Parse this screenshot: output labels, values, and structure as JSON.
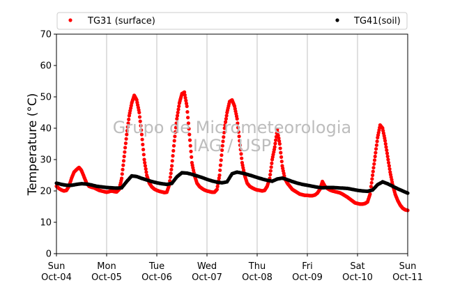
{
  "chart_data": {
    "type": "scatter",
    "ylabel": "Temperature (°C)",
    "xlabel": "",
    "ylim": [
      0,
      70
    ],
    "xlim": [
      0,
      7
    ],
    "yticks": [
      0,
      10,
      20,
      30,
      40,
      50,
      60,
      70
    ],
    "xticks": [
      {
        "x": 0,
        "day": "Sun",
        "date": "Oct-04"
      },
      {
        "x": 1,
        "day": "Mon",
        "date": "Oct-05"
      },
      {
        "x": 2,
        "day": "Tue",
        "date": "Oct-06"
      },
      {
        "x": 3,
        "day": "Wed",
        "date": "Oct-07"
      },
      {
        "x": 4,
        "day": "Thu",
        "date": "Oct-08"
      },
      {
        "x": 5,
        "day": "Fri",
        "date": "Oct-09"
      },
      {
        "x": 6,
        "day": "Sat",
        "date": "Oct-10"
      },
      {
        "x": 7,
        "day": "Sun",
        "date": "Oct-11"
      }
    ],
    "grid": "vertical",
    "legend_position": "top",
    "watermark": [
      "Grupo de Micrometeorologia",
      "IAG / USP"
    ],
    "series": [
      {
        "name": "TG31 (surface)",
        "color": "#ff0000",
        "points": [
          [
            0.0,
            21.5
          ],
          [
            0.05,
            20.8
          ],
          [
            0.1,
            20.3
          ],
          [
            0.15,
            20.0
          ],
          [
            0.2,
            20.2
          ],
          [
            0.25,
            21.5
          ],
          [
            0.3,
            24.0
          ],
          [
            0.35,
            26.0
          ],
          [
            0.4,
            26.8
          ],
          [
            0.45,
            27.5
          ],
          [
            0.5,
            26.5
          ],
          [
            0.55,
            24.5
          ],
          [
            0.6,
            22.5
          ],
          [
            0.65,
            21.5
          ],
          [
            0.7,
            21.2
          ],
          [
            0.75,
            21.0
          ],
          [
            0.8,
            20.6
          ],
          [
            0.85,
            20.2
          ],
          [
            0.9,
            20.0
          ],
          [
            0.95,
            19.8
          ],
          [
            1.0,
            19.6
          ],
          [
            1.05,
            19.8
          ],
          [
            1.1,
            20.0
          ],
          [
            1.15,
            19.8
          ],
          [
            1.2,
            19.7
          ],
          [
            1.25,
            20.5
          ],
          [
            1.3,
            24.0
          ],
          [
            1.35,
            31.0
          ],
          [
            1.4,
            38.0
          ],
          [
            1.45,
            44.0
          ],
          [
            1.5,
            48.0
          ],
          [
            1.55,
            50.5
          ],
          [
            1.6,
            49.0
          ],
          [
            1.65,
            45.0
          ],
          [
            1.7,
            38.0
          ],
          [
            1.75,
            30.0
          ],
          [
            1.8,
            25.0
          ],
          [
            1.85,
            22.5
          ],
          [
            1.9,
            21.3
          ],
          [
            1.95,
            20.6
          ],
          [
            2.0,
            20.2
          ],
          [
            2.05,
            19.9
          ],
          [
            2.1,
            19.7
          ],
          [
            2.15,
            19.5
          ],
          [
            2.2,
            19.6
          ],
          [
            2.25,
            22.0
          ],
          [
            2.3,
            28.0
          ],
          [
            2.35,
            36.0
          ],
          [
            2.4,
            43.0
          ],
          [
            2.45,
            48.0
          ],
          [
            2.5,
            51.0
          ],
          [
            2.55,
            51.5
          ],
          [
            2.6,
            47.0
          ],
          [
            2.65,
            38.0
          ],
          [
            2.7,
            29.0
          ],
          [
            2.75,
            25.0
          ],
          [
            2.8,
            22.5
          ],
          [
            2.85,
            21.4
          ],
          [
            2.9,
            20.8
          ],
          [
            2.95,
            20.3
          ],
          [
            3.0,
            20.0
          ],
          [
            3.05,
            19.8
          ],
          [
            3.1,
            19.6
          ],
          [
            3.15,
            19.6
          ],
          [
            3.2,
            20.5
          ],
          [
            3.25,
            25.0
          ],
          [
            3.3,
            33.0
          ],
          [
            3.35,
            40.0
          ],
          [
            3.4,
            45.0
          ],
          [
            3.45,
            48.5
          ],
          [
            3.5,
            49.0
          ],
          [
            3.55,
            47.0
          ],
          [
            3.6,
            43.0
          ],
          [
            3.65,
            36.0
          ],
          [
            3.7,
            29.0
          ],
          [
            3.75,
            25.0
          ],
          [
            3.8,
            22.5
          ],
          [
            3.85,
            21.5
          ],
          [
            3.9,
            21.0
          ],
          [
            3.95,
            20.6
          ],
          [
            4.0,
            20.3
          ],
          [
            4.05,
            20.2
          ],
          [
            4.1,
            20.0
          ],
          [
            4.15,
            20.2
          ],
          [
            4.2,
            21.5
          ],
          [
            4.25,
            24.0
          ],
          [
            4.3,
            30.0
          ],
          [
            4.35,
            34.0
          ],
          [
            4.4,
            39.5
          ],
          [
            4.45,
            35.0
          ],
          [
            4.5,
            28.0
          ],
          [
            4.55,
            24.0
          ],
          [
            4.6,
            22.5
          ],
          [
            4.65,
            21.5
          ],
          [
            4.7,
            20.5
          ],
          [
            4.75,
            20.0
          ],
          [
            4.8,
            19.5
          ],
          [
            4.85,
            19.0
          ],
          [
            4.9,
            18.8
          ],
          [
            4.95,
            18.6
          ],
          [
            5.0,
            18.6
          ],
          [
            5.05,
            18.5
          ],
          [
            5.1,
            18.5
          ],
          [
            5.15,
            18.7
          ],
          [
            5.2,
            19.3
          ],
          [
            5.25,
            20.5
          ],
          [
            5.3,
            23.0
          ],
          [
            5.35,
            21.5
          ],
          [
            5.4,
            20.8
          ],
          [
            5.45,
            20.3
          ],
          [
            5.5,
            20.0
          ],
          [
            5.55,
            19.8
          ],
          [
            5.6,
            19.6
          ],
          [
            5.65,
            19.4
          ],
          [
            5.7,
            19.0
          ],
          [
            5.75,
            18.5
          ],
          [
            5.8,
            18.0
          ],
          [
            5.85,
            17.4
          ],
          [
            5.9,
            16.8
          ],
          [
            5.95,
            16.2
          ],
          [
            6.0,
            16.0
          ],
          [
            6.05,
            15.8
          ],
          [
            6.1,
            15.8
          ],
          [
            6.15,
            16.0
          ],
          [
            6.2,
            16.5
          ],
          [
            6.25,
            19.0
          ],
          [
            6.3,
            25.0
          ],
          [
            6.35,
            31.0
          ],
          [
            6.4,
            37.0
          ],
          [
            6.45,
            41.0
          ],
          [
            6.5,
            40.0
          ],
          [
            6.55,
            36.0
          ],
          [
            6.6,
            31.0
          ],
          [
            6.65,
            26.0
          ],
          [
            6.7,
            22.0
          ],
          [
            6.75,
            19.0
          ],
          [
            6.8,
            17.0
          ],
          [
            6.85,
            15.5
          ],
          [
            6.9,
            14.5
          ],
          [
            6.95,
            14.0
          ],
          [
            7.0,
            13.8
          ]
        ]
      },
      {
        "name": "TG41(soil)",
        "color": "#000000",
        "points": [
          [
            0.0,
            22.5
          ],
          [
            0.1,
            22.1
          ],
          [
            0.2,
            21.8
          ],
          [
            0.3,
            21.8
          ],
          [
            0.4,
            22.1
          ],
          [
            0.5,
            22.3
          ],
          [
            0.6,
            22.2
          ],
          [
            0.7,
            21.9
          ],
          [
            0.8,
            21.5
          ],
          [
            0.9,
            21.3
          ],
          [
            1.0,
            21.1
          ],
          [
            1.1,
            21.0
          ],
          [
            1.2,
            20.9
          ],
          [
            1.3,
            21.0
          ],
          [
            1.4,
            23.0
          ],
          [
            1.5,
            24.8
          ],
          [
            1.6,
            24.6
          ],
          [
            1.7,
            24.0
          ],
          [
            1.8,
            23.5
          ],
          [
            1.9,
            23.0
          ],
          [
            2.0,
            22.6
          ],
          [
            2.1,
            22.3
          ],
          [
            2.2,
            22.1
          ],
          [
            2.3,
            22.4
          ],
          [
            2.4,
            24.5
          ],
          [
            2.5,
            25.8
          ],
          [
            2.6,
            25.7
          ],
          [
            2.7,
            25.3
          ],
          [
            2.8,
            24.8
          ],
          [
            2.9,
            24.3
          ],
          [
            3.0,
            23.7
          ],
          [
            3.1,
            23.2
          ],
          [
            3.2,
            22.8
          ],
          [
            3.3,
            22.6
          ],
          [
            3.4,
            22.9
          ],
          [
            3.5,
            25.5
          ],
          [
            3.6,
            26.0
          ],
          [
            3.7,
            25.7
          ],
          [
            3.8,
            25.3
          ],
          [
            3.9,
            24.8
          ],
          [
            4.0,
            24.3
          ],
          [
            4.1,
            23.8
          ],
          [
            4.2,
            23.4
          ],
          [
            4.3,
            23.1
          ],
          [
            4.4,
            23.8
          ],
          [
            4.5,
            24.1
          ],
          [
            4.6,
            23.6
          ],
          [
            4.7,
            23.0
          ],
          [
            4.8,
            22.5
          ],
          [
            4.9,
            22.1
          ],
          [
            5.0,
            21.8
          ],
          [
            5.1,
            21.5
          ],
          [
            5.2,
            21.2
          ],
          [
            5.3,
            21.0
          ],
          [
            5.4,
            21.1
          ],
          [
            5.5,
            21.1
          ],
          [
            5.6,
            21.0
          ],
          [
            5.7,
            20.9
          ],
          [
            5.8,
            20.8
          ],
          [
            5.9,
            20.5
          ],
          [
            6.0,
            20.2
          ],
          [
            6.1,
            20.0
          ],
          [
            6.2,
            19.9
          ],
          [
            6.3,
            20.3
          ],
          [
            6.4,
            22.0
          ],
          [
            6.5,
            22.9
          ],
          [
            6.6,
            22.3
          ],
          [
            6.7,
            21.5
          ],
          [
            6.8,
            20.7
          ],
          [
            6.9,
            20.0
          ],
          [
            7.0,
            19.3
          ]
        ]
      }
    ]
  }
}
